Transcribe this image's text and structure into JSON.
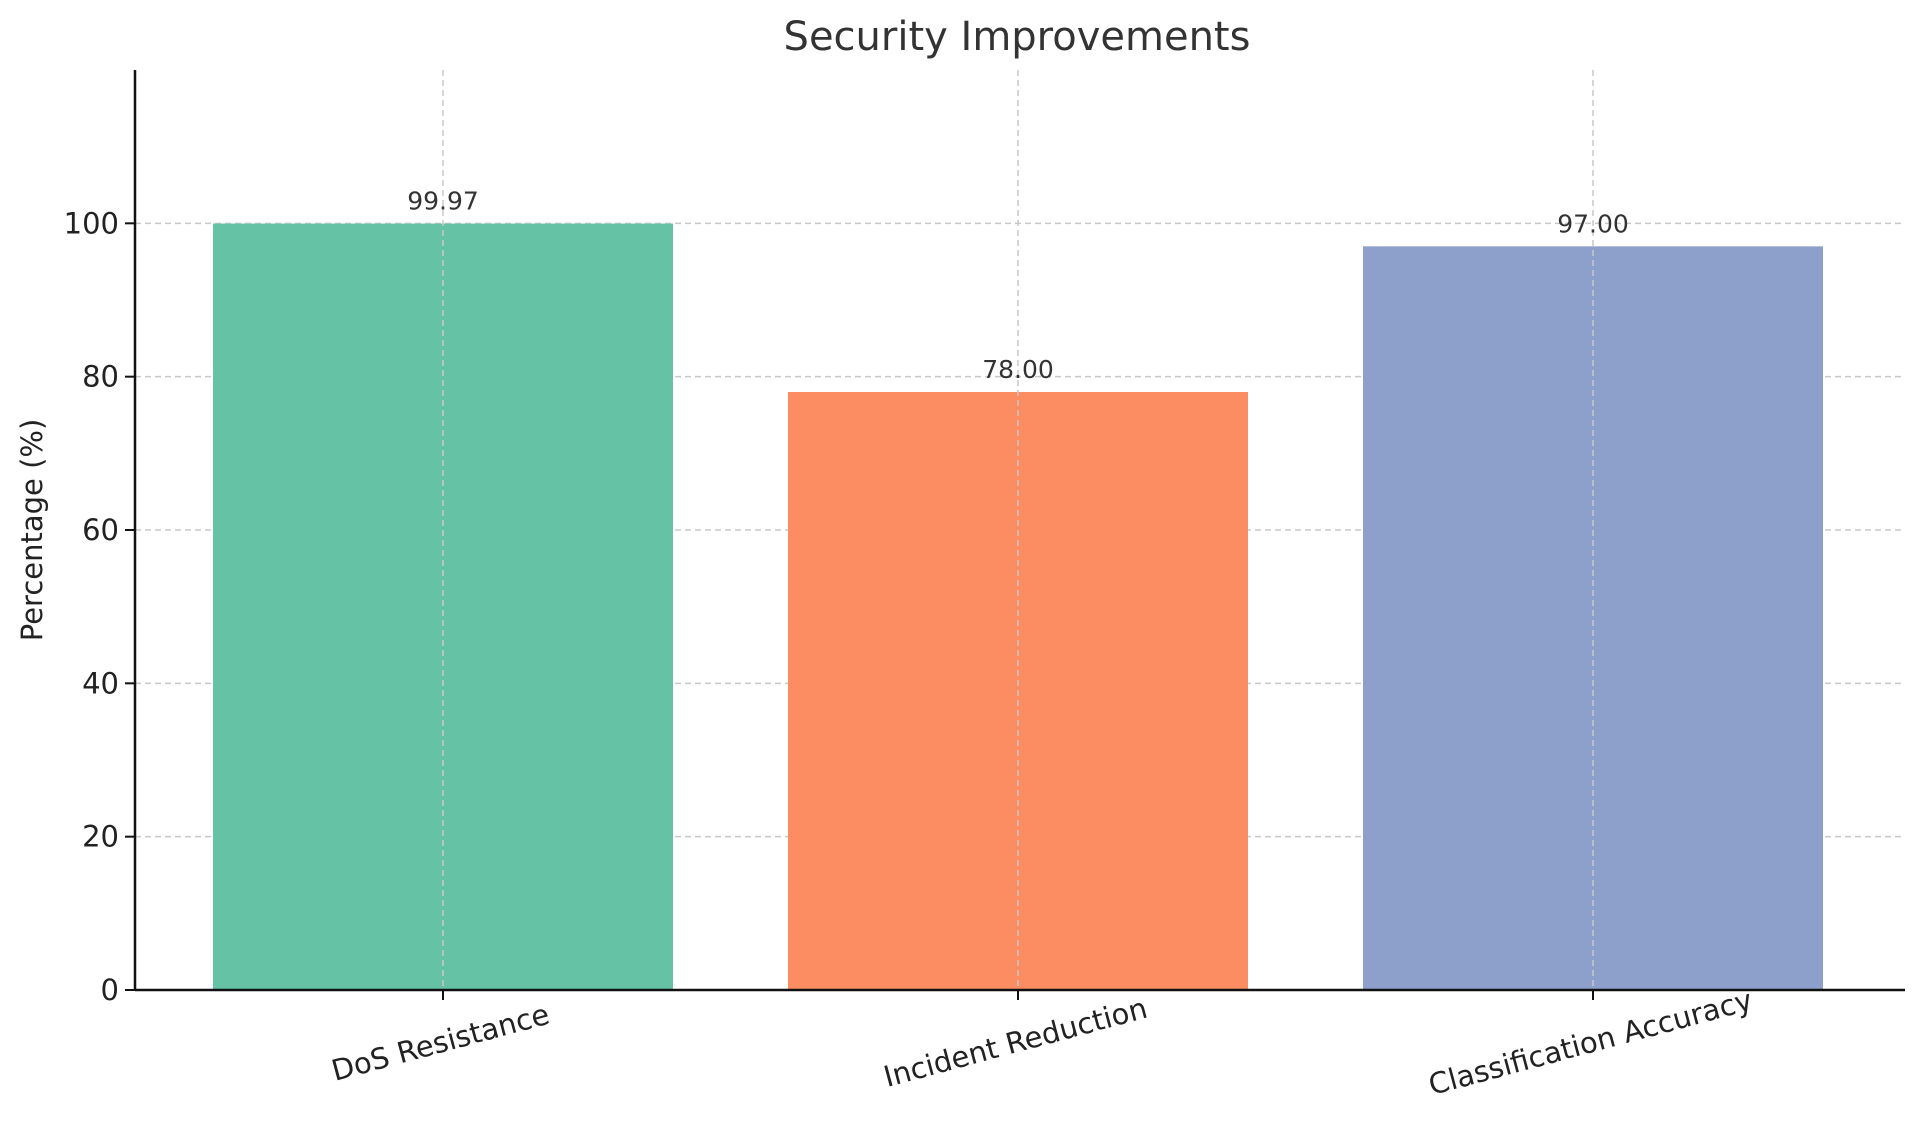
{
  "chart_data": {
    "type": "bar",
    "title": "Security Improvements",
    "xlabel": "",
    "ylabel": "Percentage (%)",
    "categories": [
      "DoS Resistance",
      "Incident Reduction",
      "Classification Accuracy"
    ],
    "values": [
      99.97,
      78.0,
      97.0
    ],
    "value_labels": [
      "99.97",
      "78.00",
      "97.00"
    ],
    "colors": [
      "#66c2a5",
      "#fc8d62",
      "#8da0cb"
    ],
    "ylim": [
      0,
      120
    ],
    "yticks": [
      0,
      20,
      40,
      60,
      80,
      100
    ],
    "ytick_labels": [
      "0",
      "20",
      "40",
      "60",
      "80",
      "100"
    ],
    "grid": true,
    "legend": "none"
  }
}
